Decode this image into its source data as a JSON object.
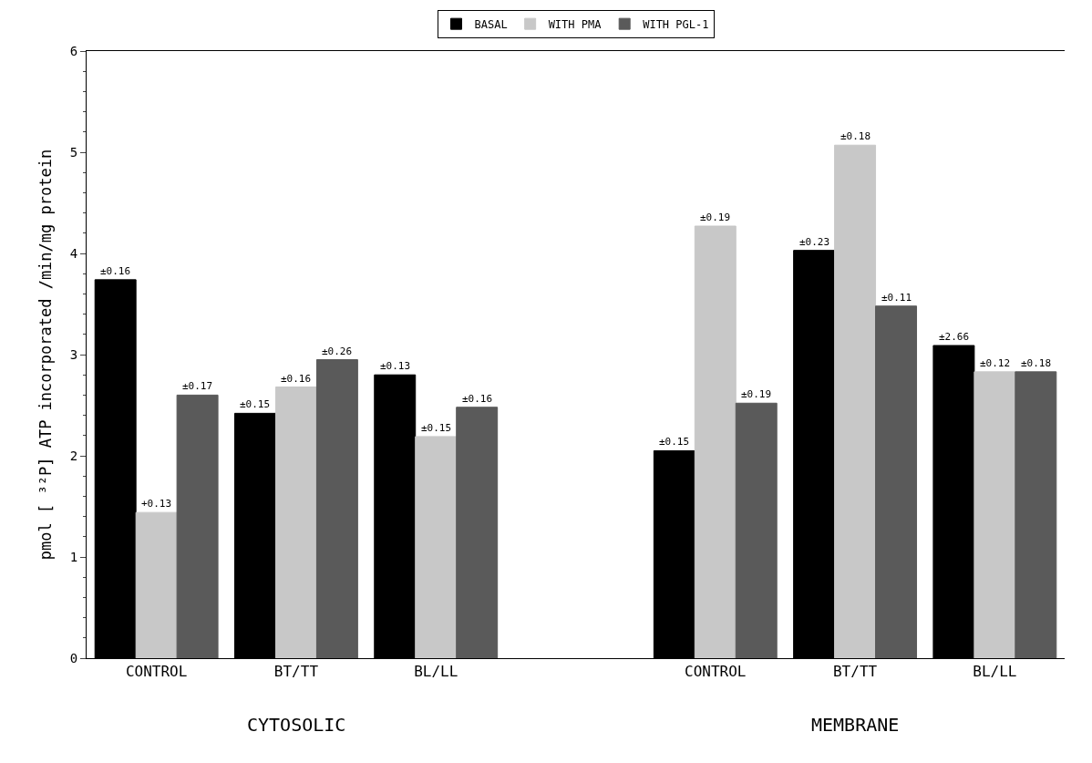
{
  "chart_data": {
    "type": "bar",
    "ylabel": "pmol [ ³²P] ATP incorporated /min/mg protein",
    "categories": [
      "CONTROL",
      "BT/TT",
      "BL/LL",
      null,
      "CONTROL",
      "BT/TT",
      "BL/LL"
    ],
    "series": [
      {
        "name": "BASAL",
        "color": "#000000",
        "values": [
          3.74,
          2.42,
          2.8,
          null,
          2.05,
          4.03,
          3.09
        ]
      },
      {
        "name": "WITH PMA",
        "color": "#c8c8c8",
        "values": [
          1.44,
          2.68,
          2.19,
          null,
          4.27,
          5.07,
          2.83
        ]
      },
      {
        "name": "WITH PGL-1",
        "color": "#5a5a5a",
        "values": [
          2.6,
          2.95,
          2.48,
          null,
          2.52,
          3.48,
          2.83
        ]
      }
    ],
    "ylim": [
      0,
      6
    ],
    "yticks": [
      0,
      1,
      2,
      3,
      4,
      5,
      6
    ],
    "annotations": [
      "CYTOSOLIC",
      "MEMBRANE",
      "±0.16",
      "+0.13",
      "±0.17",
      "±0.15",
      "±0.16",
      "±0.26",
      "±0.13",
      "±0.15",
      "±0.16",
      "±0.15",
      "±0.19",
      "±0.19",
      "±0.23",
      "±0.18",
      "±0.11",
      "±2.66",
      "±0.12",
      "±0.18"
    ],
    "legend": "top",
    "grid": false
  }
}
